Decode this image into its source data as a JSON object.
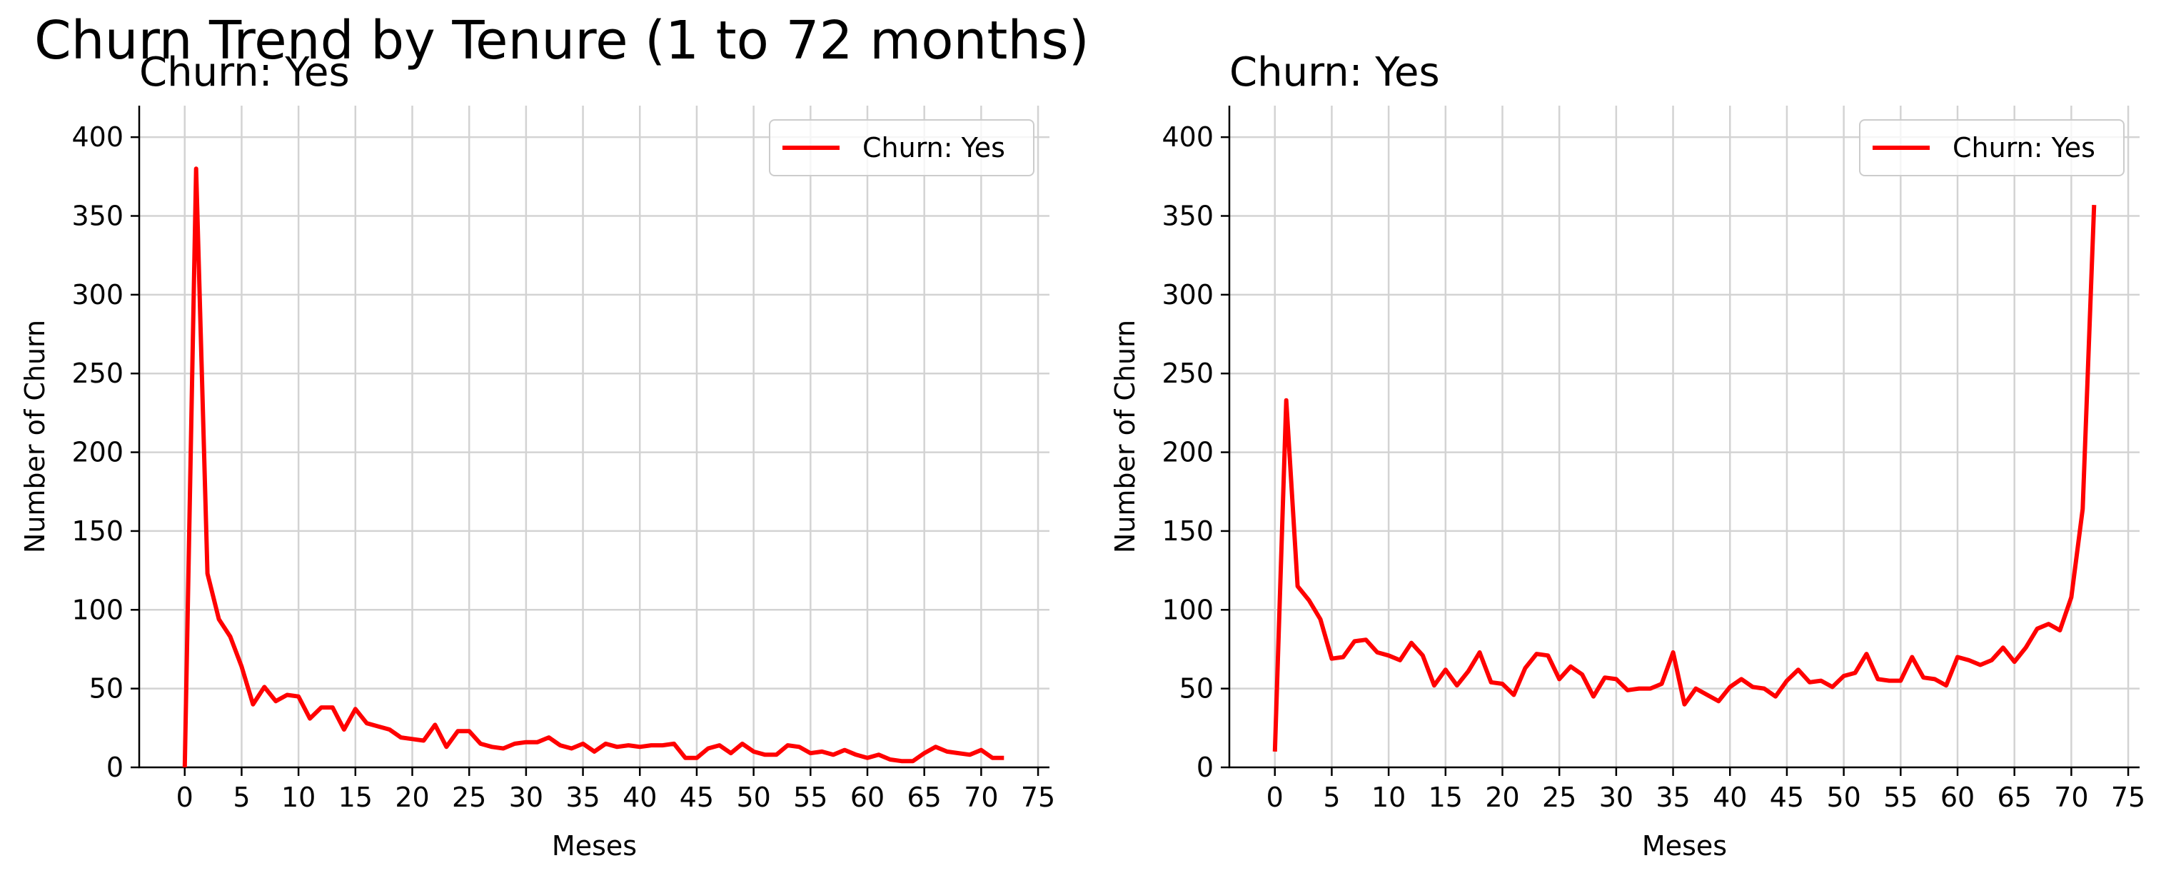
{
  "figure": {
    "suptitle": "Churn Trend by Tenure (1 to 72 months)"
  },
  "colors": {
    "line": "#ff0000",
    "grid": "#d3d3d3",
    "axis": "#000000",
    "legend_border": "#cccccc"
  },
  "chart_data": [
    {
      "type": "line",
      "title": "Churn: Yes",
      "xlabel": "Meses",
      "ylabel": "Number of Churn",
      "xlim": [
        -4,
        76
      ],
      "ylim": [
        0,
        420
      ],
      "xticks": [
        0,
        5,
        10,
        15,
        20,
        25,
        30,
        35,
        40,
        45,
        50,
        55,
        60,
        65,
        70,
        75
      ],
      "yticks": [
        0,
        50,
        100,
        150,
        200,
        250,
        300,
        350,
        400
      ],
      "grid": true,
      "legend": "top-right",
      "x": [
        0,
        1,
        2,
        3,
        4,
        5,
        6,
        7,
        8,
        9,
        10,
        11,
        12,
        13,
        14,
        15,
        16,
        17,
        18,
        19,
        20,
        21,
        22,
        23,
        24,
        25,
        26,
        27,
        28,
        29,
        30,
        31,
        32,
        33,
        34,
        35,
        36,
        37,
        38,
        39,
        40,
        41,
        42,
        43,
        44,
        45,
        46,
        47,
        48,
        49,
        50,
        51,
        52,
        53,
        54,
        55,
        56,
        57,
        58,
        59,
        60,
        61,
        62,
        63,
        64,
        65,
        66,
        67,
        68,
        69,
        70,
        71,
        72
      ],
      "series": [
        {
          "name": "Churn: Yes",
          "values": [
            0,
            380,
            123,
            94,
            83,
            64,
            40,
            51,
            42,
            46,
            45,
            31,
            38,
            38,
            24,
            37,
            28,
            26,
            24,
            19,
            18,
            17,
            27,
            13,
            23,
            23,
            15,
            13,
            12,
            15,
            16,
            16,
            19,
            14,
            12,
            15,
            10,
            15,
            13,
            14,
            13,
            14,
            14,
            15,
            6,
            6,
            12,
            14,
            9,
            15,
            10,
            8,
            8,
            14,
            13,
            9,
            10,
            8,
            11,
            8,
            6,
            8,
            5,
            4,
            4,
            9,
            13,
            10,
            9,
            8,
            11,
            6,
            6
          ]
        }
      ]
    },
    {
      "type": "line",
      "title": "Churn: Yes",
      "xlabel": "Meses",
      "ylabel": "Number of Churn",
      "xlim": [
        -4,
        76
      ],
      "ylim": [
        0,
        420
      ],
      "xticks": [
        0,
        5,
        10,
        15,
        20,
        25,
        30,
        35,
        40,
        45,
        50,
        55,
        60,
        65,
        70,
        75
      ],
      "yticks": [
        0,
        50,
        100,
        150,
        200,
        250,
        300,
        350,
        400
      ],
      "grid": true,
      "legend": "top-right",
      "x": [
        0,
        1,
        2,
        3,
        4,
        5,
        6,
        7,
        8,
        9,
        10,
        11,
        12,
        13,
        14,
        15,
        16,
        17,
        18,
        19,
        20,
        21,
        22,
        23,
        24,
        25,
        26,
        27,
        28,
        29,
        30,
        31,
        32,
        33,
        34,
        35,
        36,
        37,
        38,
        39,
        40,
        41,
        42,
        43,
        44,
        45,
        46,
        47,
        48,
        49,
        50,
        51,
        52,
        53,
        54,
        55,
        56,
        57,
        58,
        59,
        60,
        61,
        62,
        63,
        64,
        65,
        66,
        67,
        68,
        69,
        70,
        71,
        72
      ],
      "series": [
        {
          "name": "Churn: Yes",
          "values": [
            10,
            233,
            115,
            106,
            94,
            69,
            70,
            80,
            81,
            73,
            71,
            68,
            79,
            71,
            52,
            62,
            52,
            61,
            73,
            54,
            53,
            46,
            63,
            72,
            71,
            56,
            64,
            59,
            45,
            57,
            56,
            49,
            50,
            50,
            53,
            73,
            40,
            50,
            46,
            42,
            51,
            56,
            51,
            50,
            45,
            55,
            62,
            54,
            55,
            51,
            58,
            60,
            72,
            56,
            55,
            55,
            70,
            57,
            56,
            52,
            70,
            68,
            65,
            68,
            76,
            67,
            76,
            88,
            91,
            87,
            108,
            164,
            357
          ]
        }
      ]
    }
  ]
}
